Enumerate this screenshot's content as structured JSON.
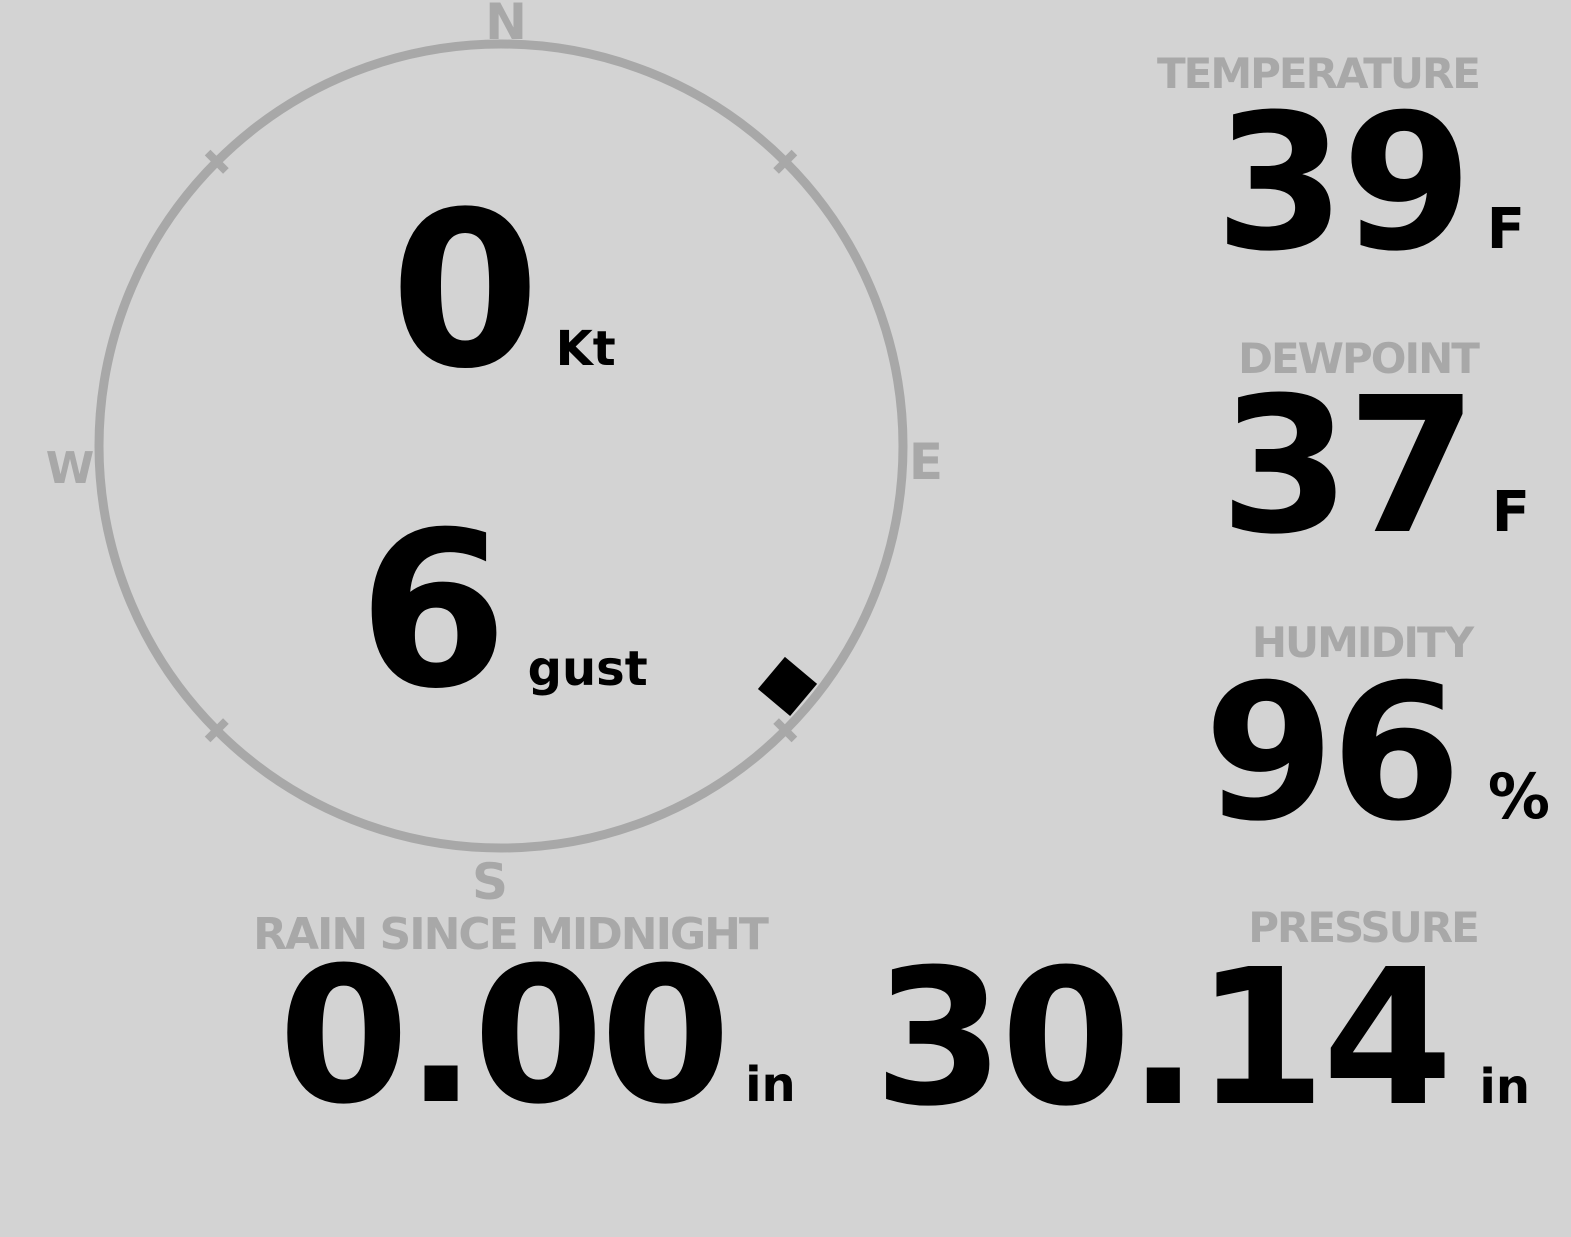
{
  "station": {
    "background_color": "#d3d3d3",
    "muted_color": "#a8a8a8",
    "value_color": "#000000"
  },
  "wind": {
    "compass": {
      "north": "N",
      "east": "E",
      "south": "S",
      "west": "W"
    },
    "speed": {
      "value": "0",
      "unit": "Kt"
    },
    "gust": {
      "value": "6",
      "unit": "gust"
    },
    "direction_marker": {
      "bearing_deg": 130
    }
  },
  "temperature": {
    "label": "TEMPERATURE",
    "value": "39",
    "unit": "F"
  },
  "dewpoint": {
    "label": "DEWPOINT",
    "value": "37",
    "unit": "F"
  },
  "humidity": {
    "label": "HUMIDITY",
    "value": "96",
    "unit": "%"
  },
  "rain": {
    "label": "RAIN SINCE MIDNIGHT",
    "value": "0.00",
    "unit": "in"
  },
  "pressure": {
    "label": "PRESSURE",
    "value": "30.14",
    "unit": "in"
  }
}
